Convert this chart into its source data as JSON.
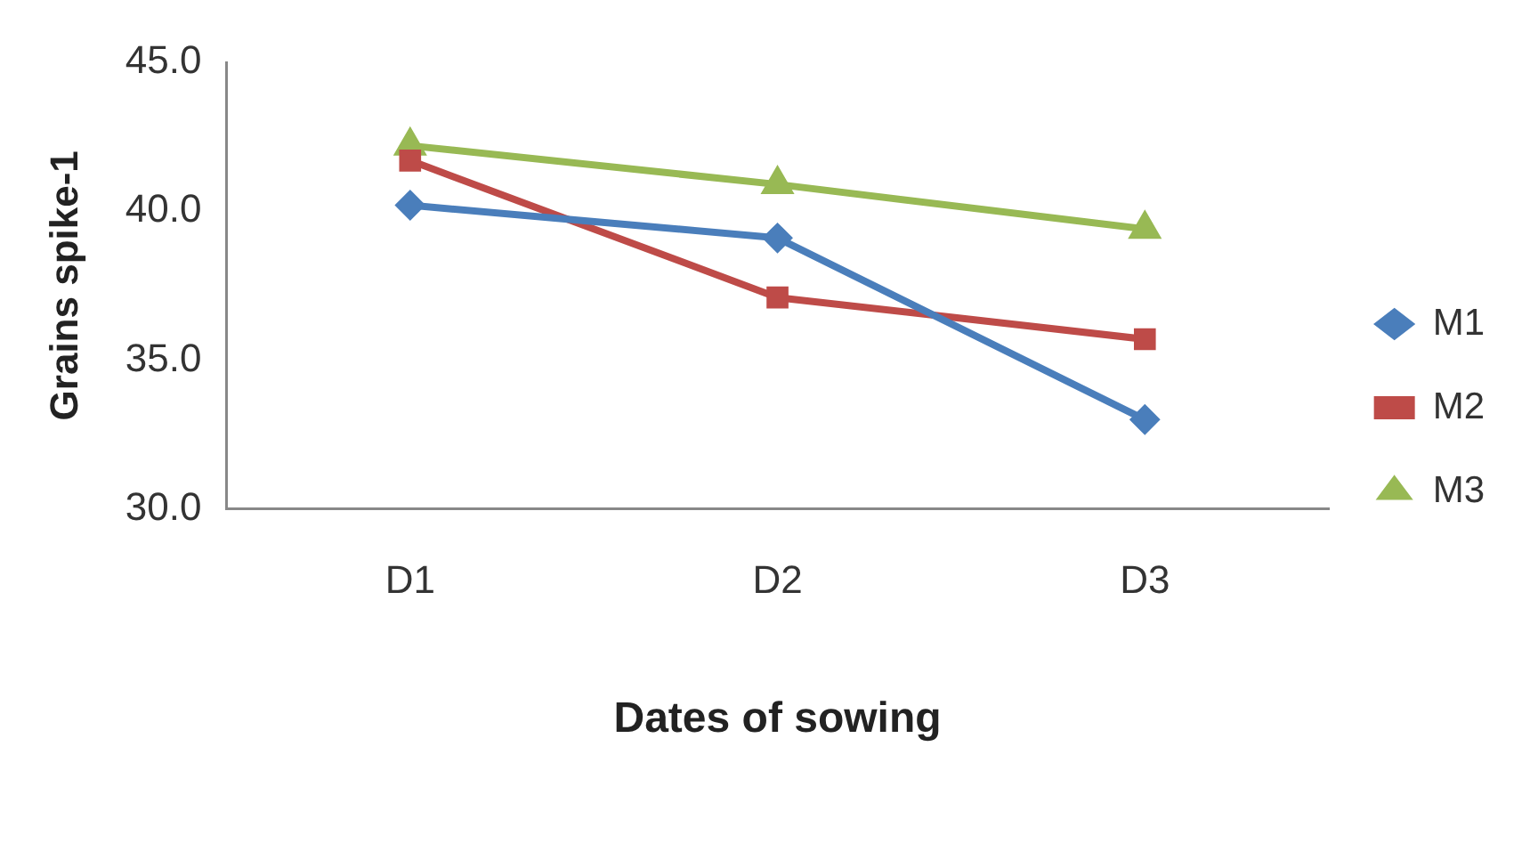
{
  "chart_data": {
    "type": "line",
    "xlabel": "Dates of sowing",
    "ylabel": "Grains spike-1",
    "categories": [
      "D1",
      "D2",
      "D3"
    ],
    "series": [
      {
        "name": "M1",
        "color": "#4a7ebb",
        "marker": "diamond",
        "values": [
          40.2,
          39.1,
          33.0
        ]
      },
      {
        "name": "M2",
        "color": "#be4b48",
        "marker": "square",
        "values": [
          41.7,
          37.1,
          35.7
        ]
      },
      {
        "name": "M3",
        "color": "#98b954",
        "marker": "triangle",
        "values": [
          42.2,
          40.9,
          39.4
        ]
      }
    ],
    "ylim": [
      30,
      45
    ],
    "yticks": [
      {
        "value": 30,
        "label": "30.0"
      },
      {
        "value": 35,
        "label": "35.0"
      },
      {
        "value": 40,
        "label": "40.0"
      },
      {
        "value": 45,
        "label": "45.0"
      }
    ],
    "grid": false,
    "legend": "right",
    "line_style": "solid"
  }
}
